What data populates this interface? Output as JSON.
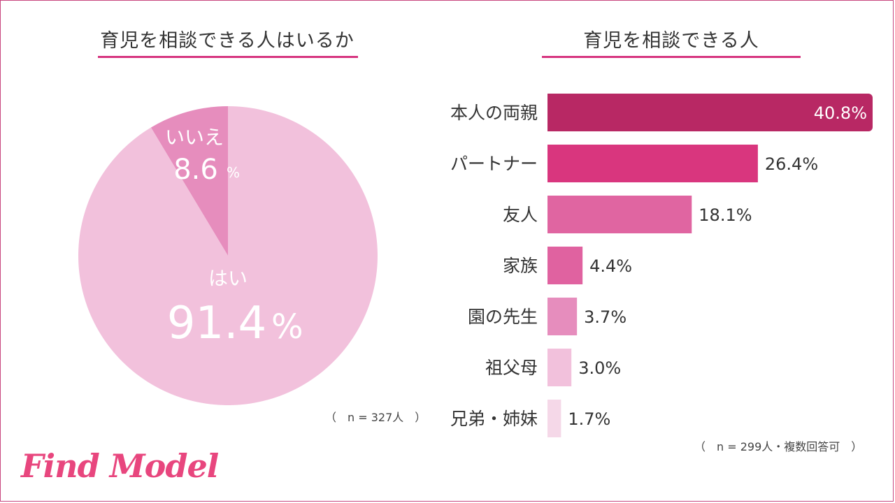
{
  "pie_chart": {
    "title": "育児を相談できる人はいるか",
    "note": "（　n = 327人　）",
    "chart_data": {
      "type": "pie",
      "title": "育児を相談できる人はいるか",
      "slices": [
        {
          "label": "はい",
          "value": 91.4,
          "display": "91.4",
          "unit": "%",
          "color": "#f2c1dc"
        },
        {
          "label": "いいえ",
          "value": 8.6,
          "display": "8.6",
          "unit": "%",
          "color": "#e68dbd"
        }
      ]
    }
  },
  "bar_chart": {
    "title": "育児を相談できる人",
    "note": "（　n = 299人・複数回答可　）",
    "chart_data": {
      "type": "bar",
      "orientation": "horizontal",
      "title": "育児を相談できる人",
      "categories": [
        "本人の両親",
        "パートナー",
        "友人",
        "家族",
        "園の先生",
        "祖父母",
        "兄弟・姉妹"
      ],
      "values": [
        40.8,
        26.4,
        18.1,
        4.4,
        3.7,
        3.0,
        1.7
      ],
      "labels": [
        "40.8%",
        "26.4%",
        "18.1%",
        "4.4%",
        "3.7%",
        "3.0%",
        "1.7%"
      ],
      "colors": [
        "#b82864",
        "#d9367e",
        "#e065a1",
        "#e062a0",
        "#e68dbd",
        "#f2c1dc",
        "#f5d8e8"
      ],
      "xlim": [
        0,
        40.8
      ]
    }
  },
  "brand": {
    "logo_text": "Find Model"
  }
}
